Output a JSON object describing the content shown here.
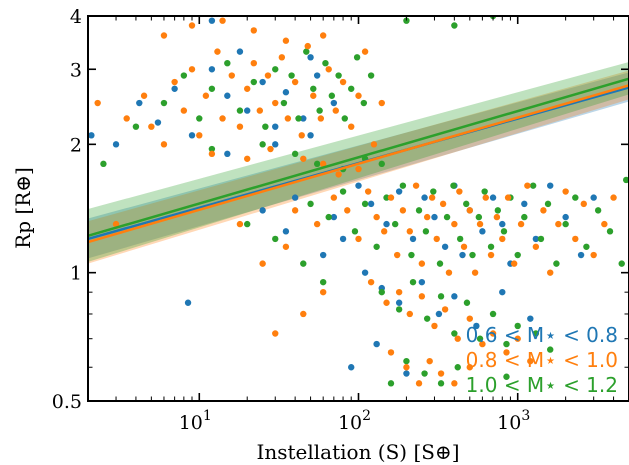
{
  "chart_data": {
    "type": "scatter",
    "title": "",
    "xlabel": "Instellation (S) [S⊕]",
    "ylabel": "Rp [R⊕]",
    "x_scale": "log",
    "y_scale": "log",
    "xlim": [
      2,
      5000
    ],
    "ylim": [
      0.5,
      4
    ],
    "x_ticks": [
      {
        "value": 10,
        "base": "10",
        "exp": "1"
      },
      {
        "value": 100,
        "base": "10",
        "exp": "2"
      },
      {
        "value": 1000,
        "base": "10",
        "exp": "3"
      }
    ],
    "y_ticks": [
      {
        "value": 0.5,
        "label": "0.5"
      },
      {
        "value": 1,
        "label": "1"
      },
      {
        "value": 2,
        "label": "2"
      },
      {
        "value": 3,
        "label": "3"
      },
      {
        "value": 4,
        "label": "4"
      }
    ],
    "legend_position": "bottom-right",
    "series": [
      {
        "name": "0.6 < M⋆ < 0.8",
        "color": "#1f77b4",
        "fit": {
          "y_at_xmin": 1.2,
          "y_at_xmax": 2.72,
          "band_at_xmin": [
            1.08,
            1.34
          ],
          "band_at_xmax": [
            2.52,
            2.95
          ]
        },
        "points": [
          [
            2.1,
            2.1
          ],
          [
            3.0,
            2.0
          ],
          [
            4.2,
            2.5
          ],
          [
            5.5,
            2.25
          ],
          [
            7.0,
            2.7
          ],
          [
            9.0,
            2.1
          ],
          [
            12,
            3.0
          ],
          [
            15,
            2.6
          ],
          [
            20,
            2.4
          ],
          [
            25,
            2.8
          ],
          [
            30,
            2.2
          ],
          [
            35,
            2.65
          ],
          [
            45,
            2.3
          ],
          [
            55,
            2.9
          ],
          [
            70,
            2.5
          ],
          [
            15,
            1.9
          ],
          [
            30,
            2.0
          ],
          [
            50,
            2.1
          ],
          [
            8.5,
            0.85
          ],
          [
            40,
            1.5
          ],
          [
            70,
            1.35
          ],
          [
            100,
            1.6
          ],
          [
            120,
            1.45
          ],
          [
            150,
            1.3
          ],
          [
            180,
            1.55
          ],
          [
            220,
            1.2
          ],
          [
            260,
            1.5
          ],
          [
            300,
            1.35
          ],
          [
            350,
            1.15
          ],
          [
            400,
            1.6
          ],
          [
            450,
            1.1
          ],
          [
            500,
            1.4
          ],
          [
            600,
            1.25
          ],
          [
            700,
            1.5
          ],
          [
            800,
            1.3
          ],
          [
            900,
            1.05
          ],
          [
            1100,
            1.45
          ],
          [
            1300,
            1.2
          ],
          [
            1600,
            1.6
          ],
          [
            2000,
            1.35
          ],
          [
            2500,
            1.1
          ],
          [
            3000,
            1.5
          ],
          [
            110,
            1.0
          ],
          [
            140,
            0.92
          ],
          [
            180,
            0.85
          ],
          [
            250,
            0.95
          ],
          [
            320,
            0.8
          ],
          [
            400,
            0.88
          ],
          [
            550,
            0.75
          ],
          [
            800,
            0.9
          ],
          [
            1200,
            0.78
          ],
          [
            90,
            0.6
          ],
          [
            130,
            0.68
          ],
          [
            200,
            0.58
          ],
          [
            60,
            1.1
          ],
          [
            80,
            1.2
          ],
          [
            35,
            1.25
          ],
          [
            25,
            1.4
          ],
          [
            12,
            3.9
          ],
          [
            18,
            3.3
          ],
          [
            50,
            3.2
          ]
        ]
      },
      {
        "name": "0.8 < M⋆ < 1.0",
        "color": "#ff7f0e",
        "fit": {
          "y_at_xmin": 1.18,
          "y_at_xmax": 2.75,
          "band_at_xmin": [
            1.05,
            1.32
          ],
          "band_at_xmax": [
            2.55,
            2.98
          ]
        },
        "points": [
          [
            2.3,
            2.5
          ],
          [
            3.0,
            1.3
          ],
          [
            3.5,
            2.3
          ],
          [
            4.5,
            2.6
          ],
          [
            5.0,
            2.2
          ],
          [
            6.0,
            2.0
          ],
          [
            7.0,
            2.8
          ],
          [
            8.0,
            2.4
          ],
          [
            9.0,
            3.0
          ],
          [
            10,
            2.1
          ],
          [
            11,
            2.6
          ],
          [
            13,
            3.3
          ],
          [
            14,
            2.3
          ],
          [
            16,
            2.9
          ],
          [
            18,
            2.2
          ],
          [
            20,
            2.7
          ],
          [
            22,
            3.1
          ],
          [
            24,
            2.4
          ],
          [
            27,
            2.9
          ],
          [
            30,
            2.5
          ],
          [
            33,
            3.2
          ],
          [
            36,
            2.3
          ],
          [
            40,
            2.8
          ],
          [
            44,
            2.1
          ],
          [
            48,
            3.4
          ],
          [
            52,
            2.6
          ],
          [
            58,
            2.3
          ],
          [
            65,
            3.0
          ],
          [
            72,
            2.4
          ],
          [
            80,
            2.8
          ],
          [
            90,
            2.2
          ],
          [
            100,
            2.6
          ],
          [
            110,
            3.3
          ],
          [
            125,
            2.0
          ],
          [
            140,
            2.5
          ],
          [
            6,
            3.6
          ],
          [
            9,
            3.8
          ],
          [
            14,
            3.9
          ],
          [
            22,
            3.7
          ],
          [
            35,
            3.5
          ],
          [
            60,
            3.6
          ],
          [
            12,
            1.9
          ],
          [
            20,
            1.85
          ],
          [
            28,
            1.95
          ],
          [
            45,
            1.85
          ],
          [
            60,
            1.8
          ],
          [
            75,
            1.7
          ],
          [
            100,
            1.75
          ],
          [
            40,
            1.4
          ],
          [
            55,
            1.3
          ],
          [
            70,
            1.5
          ],
          [
            85,
            1.4
          ],
          [
            100,
            1.2
          ],
          [
            115,
            1.55
          ],
          [
            130,
            1.35
          ],
          [
            145,
            1.25
          ],
          [
            160,
            1.5
          ],
          [
            175,
            1.1
          ],
          [
            190,
            1.4
          ],
          [
            210,
            1.25
          ],
          [
            230,
            1.6
          ],
          [
            250,
            1.05
          ],
          [
            270,
            1.35
          ],
          [
            290,
            1.5
          ],
          [
            310,
            1.2
          ],
          [
            340,
            1.45
          ],
          [
            370,
            1.0
          ],
          [
            400,
            1.3
          ],
          [
            430,
            1.55
          ],
          [
            460,
            1.15
          ],
          [
            500,
            1.4
          ],
          [
            540,
            1.0
          ],
          [
            580,
            1.3
          ],
          [
            630,
            1.5
          ],
          [
            680,
            1.1
          ],
          [
            740,
            1.35
          ],
          [
            800,
            1.2
          ],
          [
            870,
            1.5
          ],
          [
            950,
            1.05
          ],
          [
            1050,
            1.3
          ],
          [
            1150,
            1.6
          ],
          [
            1300,
            1.15
          ],
          [
            1450,
            1.4
          ],
          [
            1600,
            1.0
          ],
          [
            1800,
            1.3
          ],
          [
            2000,
            1.55
          ],
          [
            2300,
            1.2
          ],
          [
            2600,
            1.45
          ],
          [
            3000,
            1.1
          ],
          [
            3500,
            1.3
          ],
          [
            4000,
            1.5
          ],
          [
            120,
            0.95
          ],
          [
            150,
            0.85
          ],
          [
            180,
            0.9
          ],
          [
            210,
            0.8
          ],
          [
            250,
            0.88
          ],
          [
            300,
            0.75
          ],
          [
            350,
            0.82
          ],
          [
            420,
            0.7
          ],
          [
            500,
            0.78
          ],
          [
            600,
            0.68
          ],
          [
            700,
            0.72
          ],
          [
            850,
            0.65
          ],
          [
            1000,
            0.7
          ],
          [
            1200,
            0.62
          ],
          [
            160,
            0.65
          ],
          [
            200,
            0.6
          ],
          [
            240,
            0.55
          ],
          [
            280,
            0.62
          ],
          [
            330,
            0.58
          ],
          [
            400,
            0.55
          ],
          [
            500,
            0.6
          ],
          [
            30,
            0.72
          ],
          [
            45,
            0.8
          ],
          [
            60,
            0.9
          ],
          [
            25,
            1.05
          ],
          [
            35,
            1.15
          ],
          [
            18,
            1.3
          ]
        ]
      },
      {
        "name": "1.0 < M⋆ < 1.2",
        "color": "#2ca02c",
        "fit": {
          "y_at_xmin": 1.22,
          "y_at_xmax": 2.85,
          "band_at_xmin": [
            1.06,
            1.41
          ],
          "band_at_xmax": [
            2.62,
            3.12
          ]
        },
        "points": [
          [
            2.5,
            1.8
          ],
          [
            4.0,
            2.2
          ],
          [
            6.0,
            2.5
          ],
          [
            8.0,
            2.9
          ],
          [
            10,
            2.3
          ],
          [
            12,
            2.7
          ],
          [
            15,
            3.1
          ],
          [
            18,
            2.4
          ],
          [
            22,
            2.8
          ],
          [
            26,
            2.2
          ],
          [
            30,
            3.0
          ],
          [
            34,
            2.5
          ],
          [
            38,
            2.9
          ],
          [
            42,
            2.3
          ],
          [
            47,
            3.3
          ],
          [
            52,
            2.7
          ],
          [
            57,
            2.4
          ],
          [
            62,
            3.1
          ],
          [
            68,
            2.6
          ],
          [
            75,
            2.9
          ],
          [
            82,
            2.3
          ],
          [
            90,
            2.7
          ],
          [
            98,
            3.2
          ],
          [
            108,
            2.5
          ],
          [
            120,
            2.9
          ],
          [
            200,
            3.9
          ],
          [
            400,
            3.8
          ],
          [
            700,
            4.0
          ],
          [
            12,
            1.95
          ],
          [
            25,
            2.0
          ],
          [
            40,
            1.9
          ],
          [
            55,
            1.8
          ],
          [
            80,
            1.75
          ],
          [
            110,
            1.85
          ],
          [
            140,
            1.8
          ],
          [
            50,
            1.45
          ],
          [
            65,
            1.35
          ],
          [
            80,
            1.55
          ],
          [
            95,
            1.25
          ],
          [
            110,
            1.45
          ],
          [
            130,
            1.15
          ],
          [
            150,
            1.5
          ],
          [
            170,
            1.3
          ],
          [
            190,
            1.6
          ],
          [
            215,
            1.1
          ],
          [
            240,
            1.4
          ],
          [
            265,
            1.25
          ],
          [
            295,
            1.55
          ],
          [
            325,
            1.05
          ],
          [
            360,
            1.35
          ],
          [
            395,
            1.6
          ],
          [
            435,
            1.2
          ],
          [
            475,
            1.45
          ],
          [
            520,
            1.1
          ],
          [
            570,
            1.35
          ],
          [
            620,
            1.55
          ],
          [
            680,
            1.15
          ],
          [
            750,
            1.4
          ],
          [
            820,
            1.25
          ],
          [
            900,
            1.5
          ],
          [
            1000,
            1.1
          ],
          [
            1100,
            1.35
          ],
          [
            1250,
            1.6
          ],
          [
            1400,
            1.2
          ],
          [
            1550,
            1.45
          ],
          [
            1750,
            1.05
          ],
          [
            2000,
            1.3
          ],
          [
            2300,
            1.5
          ],
          [
            2700,
            1.15
          ],
          [
            3200,
            1.4
          ],
          [
            3800,
            1.25
          ],
          [
            4500,
            1.05
          ],
          [
            4800,
            1.65
          ],
          [
            140,
            0.9
          ],
          [
            180,
            0.82
          ],
          [
            220,
            0.95
          ],
          [
            270,
            0.78
          ],
          [
            330,
            0.88
          ],
          [
            400,
            0.72
          ],
          [
            480,
            0.85
          ],
          [
            580,
            0.7
          ],
          [
            700,
            0.8
          ],
          [
            850,
            0.68
          ],
          [
            1000,
            0.75
          ],
          [
            1300,
            0.72
          ],
          [
            1600,
            0.66
          ],
          [
            200,
            0.62
          ],
          [
            260,
            0.58
          ],
          [
            330,
            0.55
          ],
          [
            420,
            0.6
          ],
          [
            160,
            0.55
          ],
          [
            60,
            0.95
          ],
          [
            45,
            1.05
          ],
          [
            30,
            1.2
          ],
          [
            20,
            1.3
          ],
          [
            850,
            0.57
          ]
        ]
      }
    ]
  }
}
